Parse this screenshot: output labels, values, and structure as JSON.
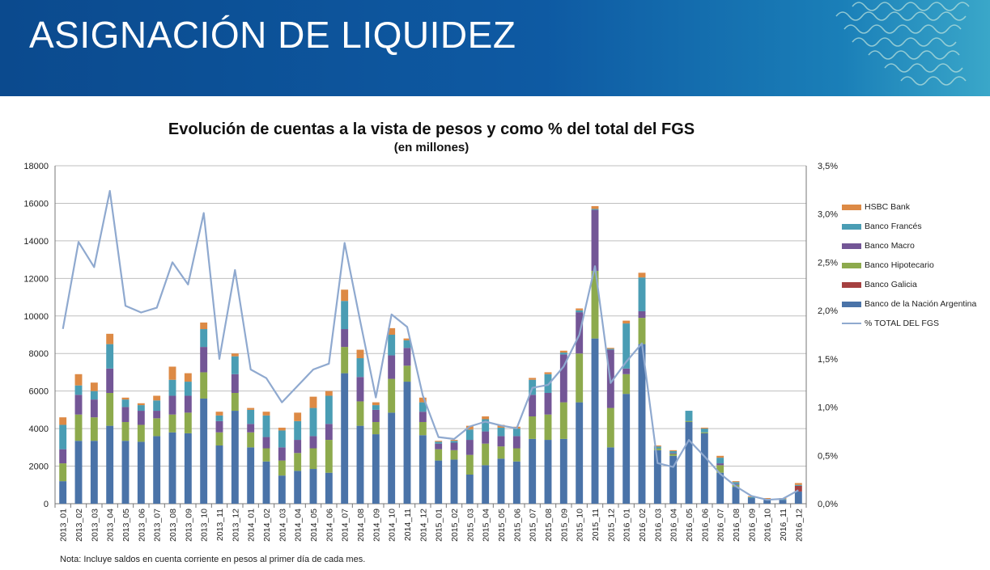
{
  "header": {
    "title": "ASIGNACIÓN DE LIQUIDEZ"
  },
  "note": "Nota: Incluye saldos en cuenta corriente en pesos al primer día de cada mes.",
  "chart_data": {
    "type": "bar",
    "stacked": true,
    "title": "Evolución de cuentas a la vista de pesos y como % del total del FGS",
    "subtitle": "(en millones)",
    "ylim": [
      0,
      18000
    ],
    "y_ticks": [
      "0",
      "2000",
      "4000",
      "6000",
      "8000",
      "10000",
      "12000",
      "14000",
      "16000",
      "18000"
    ],
    "y2lim": [
      0,
      3.5
    ],
    "y2_ticks": [
      "0,0%",
      "0,5%",
      "1,0%",
      "1,5%",
      "2,0%",
      "2,5%",
      "3,0%",
      "3,5%"
    ],
    "grid": true,
    "legend_position": "right",
    "categories": [
      "2013_01",
      "2013_02",
      "2013_03",
      "2013_04",
      "2013_05",
      "2013_06",
      "2013_07",
      "2013_08",
      "2013_09",
      "2013_10",
      "2013_11",
      "2013_12",
      "2014_01",
      "2014_02",
      "2014_03",
      "2014_04",
      "2014_05",
      "2014_06",
      "2014_07",
      "2014_08",
      "2014_09",
      "2014_10",
      "2014_11",
      "2014_12",
      "2015_01",
      "2015_02",
      "2015_03",
      "2015_04",
      "2015_05",
      "2015_06",
      "2015_07",
      "2015_08",
      "2015_09",
      "2015_10",
      "2015_11",
      "2015_12",
      "2016_01",
      "2016_02",
      "2016_03",
      "2016_04",
      "2016_05",
      "2016_06",
      "2016_07",
      "2016_08",
      "2016_09",
      "2016_10",
      "2016_11",
      "2016_12"
    ],
    "series": [
      {
        "name": "Banco de la Nación Argentina",
        "color": "#4a73a8",
        "values": [
          1200,
          3350,
          3350,
          4150,
          3350,
          3300,
          3600,
          3800,
          3750,
          5600,
          3100,
          4950,
          3000,
          2250,
          1500,
          1750,
          1850,
          1650,
          6950,
          4150,
          3700,
          4850,
          6500,
          3650,
          2300,
          2350,
          1550,
          2050,
          2400,
          2250,
          3450,
          3400,
          3450,
          5400,
          8800,
          3000,
          5850,
          8500,
          2850,
          2550,
          4350,
          3750,
          1650,
          900,
          300,
          200,
          200,
          650
        ]
      },
      {
        "name": "Banco Galicia",
        "color": "#a54040",
        "values": [
          0,
          0,
          0,
          0,
          0,
          0,
          0,
          0,
          0,
          0,
          0,
          0,
          0,
          0,
          0,
          0,
          0,
          0,
          0,
          0,
          0,
          0,
          0,
          0,
          0,
          0,
          0,
          0,
          0,
          0,
          0,
          0,
          0,
          0,
          0,
          0,
          0,
          0,
          0,
          0,
          0,
          0,
          0,
          0,
          0,
          0,
          0,
          300
        ]
      },
      {
        "name": "Banco Hipotecario",
        "color": "#8daa4d",
        "values": [
          950,
          1400,
          1250,
          1750,
          1000,
          900,
          950,
          950,
          1100,
          1400,
          700,
          950,
          800,
          700,
          800,
          950,
          1100,
          1750,
          1400,
          1300,
          650,
          1800,
          850,
          700,
          600,
          500,
          1050,
          1150,
          650,
          700,
          1200,
          1350,
          1950,
          2600,
          3600,
          2100,
          1050,
          1400,
          100,
          100,
          50,
          50,
          400,
          100,
          0,
          0,
          0,
          0
        ]
      },
      {
        "name": "Banco Macro",
        "color": "#735696",
        "values": [
          750,
          1050,
          950,
          1300,
          800,
          750,
          400,
          1000,
          900,
          1350,
          600,
          1000,
          450,
          600,
          700,
          700,
          650,
          850,
          950,
          1300,
          650,
          1250,
          950,
          550,
          300,
          400,
          800,
          650,
          550,
          650,
          1150,
          1150,
          2550,
          2200,
          3250,
          3100,
          300,
          350,
          0,
          50,
          0,
          0,
          100,
          50,
          0,
          0,
          0,
          0
        ]
      },
      {
        "name": "Banco Francés",
        "color": "#4a9db4",
        "values": [
          1300,
          500,
          450,
          1300,
          400,
          300,
          550,
          850,
          750,
          950,
          300,
          950,
          750,
          1150,
          900,
          1000,
          1500,
          1500,
          1500,
          1000,
          250,
          1100,
          400,
          500,
          100,
          100,
          550,
          650,
          450,
          400,
          800,
          1000,
          100,
          100,
          50,
          50,
          2400,
          1800,
          100,
          100,
          550,
          200,
          300,
          100,
          50,
          50,
          50,
          50
        ]
      },
      {
        "name": "HSBC Bank",
        "color": "#dd8a45",
        "values": [
          400,
          600,
          450,
          550,
          100,
          100,
          250,
          700,
          450,
          350,
          200,
          150,
          100,
          200,
          150,
          450,
          600,
          250,
          600,
          450,
          150,
          350,
          100,
          250,
          50,
          50,
          200,
          150,
          150,
          100,
          100,
          100,
          100,
          100,
          150,
          50,
          150,
          250,
          50,
          50,
          0,
          50,
          100,
          50,
          50,
          50,
          50,
          100
        ]
      },
      {
        "name": "% TOTAL DEL FGS",
        "color": "#8fa9cf",
        "axis": "right",
        "type": "line",
        "values": [
          1.81,
          2.71,
          2.45,
          3.24,
          2.05,
          1.98,
          2.03,
          2.5,
          2.27,
          3.01,
          1.5,
          2.42,
          1.39,
          1.3,
          1.05,
          1.22,
          1.39,
          1.45,
          2.7,
          1.89,
          1.1,
          1.96,
          1.83,
          1.12,
          0.69,
          0.67,
          0.8,
          0.85,
          0.81,
          0.78,
          1.2,
          1.23,
          1.42,
          1.75,
          2.46,
          1.25,
          1.47,
          1.66,
          0.42,
          0.38,
          0.66,
          0.49,
          0.31,
          0.18,
          0.08,
          0.04,
          0.05,
          0.14
        ]
      }
    ]
  }
}
